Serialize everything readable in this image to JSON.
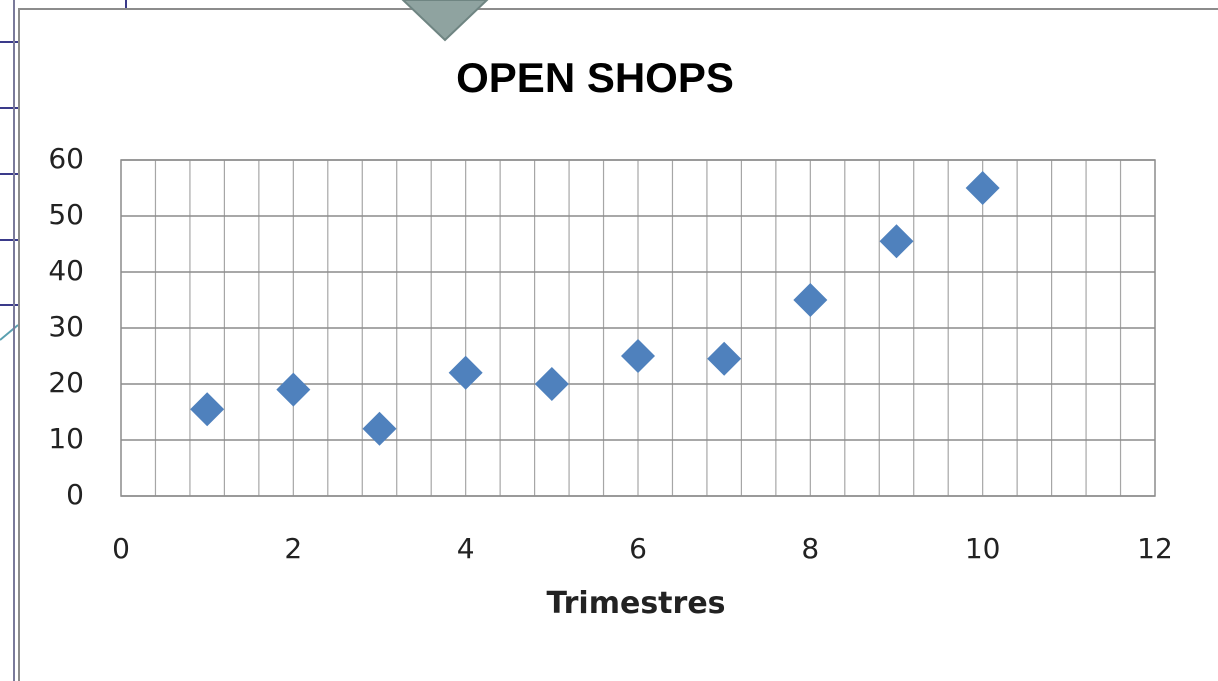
{
  "chart_data": {
    "type": "scatter",
    "title": "OPEN SHOPS",
    "x_label": "Trimestres",
    "series": [
      {
        "name": "Open shops",
        "color": "#4f81bd",
        "x": [
          1,
          2,
          3,
          4,
          5,
          6,
          7,
          8,
          9,
          10
        ],
        "values": [
          15.5,
          19,
          12,
          22,
          20,
          25,
          24.5,
          35,
          45.5,
          55
        ]
      }
    ],
    "xlim": [
      0,
      12
    ],
    "xticks": [
      0,
      2,
      4,
      6,
      8,
      10,
      12
    ],
    "ylim": [
      0,
      60
    ],
    "yticks": [
      0,
      10,
      20,
      30,
      40,
      50,
      60
    ],
    "grid": true,
    "x_minor_step": 0.4,
    "legend": false
  }
}
